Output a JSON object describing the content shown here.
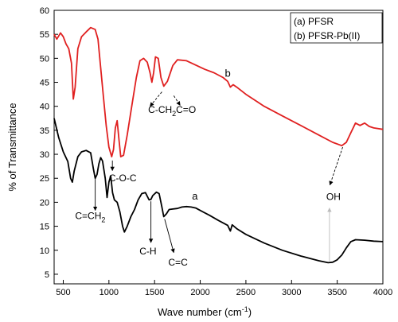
{
  "chart_data": {
    "type": "line",
    "title": "",
    "xlabel": "Wave number (cm",
    "xlabel_sup": "-1",
    "xlabel_close": ")",
    "ylabel": "% of Transmittance",
    "xlim": [
      400,
      4000
    ],
    "ylim": [
      3,
      60
    ],
    "x_ticks": [
      500,
      1000,
      1500,
      2000,
      2500,
      3000,
      3500,
      4000
    ],
    "y_ticks": [
      5,
      10,
      15,
      20,
      25,
      30,
      35,
      40,
      45,
      50,
      55,
      60
    ],
    "grid": false,
    "legend": {
      "placement": "top-right",
      "entries": [
        "(a) PFSR",
        "(b) PFSR-Pb(II)"
      ]
    },
    "series": [
      {
        "name": "(b) PFSR-Pb(II)",
        "curve_label": "b",
        "color": "#e02020",
        "points": [
          [
            400,
            55.0
          ],
          [
            430,
            54.0
          ],
          [
            470,
            55.3
          ],
          [
            500,
            54.5
          ],
          [
            530,
            53.0
          ],
          [
            560,
            52.0
          ],
          [
            590,
            49.0
          ],
          [
            610,
            41.5
          ],
          [
            630,
            44.0
          ],
          [
            660,
            52.0
          ],
          [
            700,
            54.5
          ],
          [
            750,
            55.5
          ],
          [
            800,
            56.4
          ],
          [
            850,
            56.0
          ],
          [
            880,
            54.0
          ],
          [
            910,
            48.0
          ],
          [
            940,
            42.0
          ],
          [
            970,
            36.0
          ],
          [
            1000,
            31.5
          ],
          [
            1030,
            29.5
          ],
          [
            1050,
            31.0
          ],
          [
            1070,
            35.5
          ],
          [
            1090,
            37.0
          ],
          [
            1110,
            33.0
          ],
          [
            1130,
            29.5
          ],
          [
            1160,
            29.8
          ],
          [
            1200,
            34.0
          ],
          [
            1250,
            40.0
          ],
          [
            1300,
            46.0
          ],
          [
            1340,
            49.5
          ],
          [
            1380,
            50.0
          ],
          [
            1420,
            49.2
          ],
          [
            1450,
            47.0
          ],
          [
            1470,
            45.0
          ],
          [
            1490,
            47.0
          ],
          [
            1510,
            50.3
          ],
          [
            1540,
            50.0
          ],
          [
            1570,
            46.0
          ],
          [
            1600,
            44.2
          ],
          [
            1640,
            45.2
          ],
          [
            1700,
            48.5
          ],
          [
            1750,
            49.7
          ],
          [
            1850,
            49.5
          ],
          [
            1950,
            48.6
          ],
          [
            2050,
            47.7
          ],
          [
            2150,
            47.0
          ],
          [
            2250,
            46.0
          ],
          [
            2300,
            45.2
          ],
          [
            2330,
            44.0
          ],
          [
            2360,
            44.5
          ],
          [
            2400,
            44.0
          ],
          [
            2500,
            42.5
          ],
          [
            2700,
            40.0
          ],
          [
            2900,
            38.0
          ],
          [
            3100,
            36.0
          ],
          [
            3300,
            34.0
          ],
          [
            3450,
            32.5
          ],
          [
            3550,
            31.8
          ],
          [
            3600,
            32.5
          ],
          [
            3650,
            34.5
          ],
          [
            3700,
            36.5
          ],
          [
            3750,
            36.0
          ],
          [
            3800,
            36.5
          ],
          [
            3850,
            35.8
          ],
          [
            3900,
            35.5
          ],
          [
            4000,
            35.2
          ]
        ]
      },
      {
        "name": "(a) PFSR",
        "curve_label": "a",
        "color": "#000000",
        "points": [
          [
            400,
            37.5
          ],
          [
            450,
            33.5
          ],
          [
            500,
            30.5
          ],
          [
            550,
            28.5
          ],
          [
            580,
            25.0
          ],
          [
            600,
            24.2
          ],
          [
            620,
            26.5
          ],
          [
            660,
            29.5
          ],
          [
            700,
            30.5
          ],
          [
            750,
            30.8
          ],
          [
            800,
            30.3
          ],
          [
            830,
            27.0
          ],
          [
            850,
            25.0
          ],
          [
            870,
            25.8
          ],
          [
            890,
            28.0
          ],
          [
            910,
            29.3
          ],
          [
            930,
            28.6
          ],
          [
            960,
            25.0
          ],
          [
            980,
            21.0
          ],
          [
            1000,
            24.2
          ],
          [
            1020,
            25.5
          ],
          [
            1040,
            22.0
          ],
          [
            1060,
            20.5
          ],
          [
            1090,
            20.0
          ],
          [
            1120,
            18.0
          ],
          [
            1150,
            15.0
          ],
          [
            1170,
            13.8
          ],
          [
            1200,
            15.0
          ],
          [
            1240,
            17.0
          ],
          [
            1280,
            18.5
          ],
          [
            1320,
            20.5
          ],
          [
            1360,
            21.8
          ],
          [
            1400,
            22.0
          ],
          [
            1440,
            20.5
          ],
          [
            1460,
            20.6
          ],
          [
            1480,
            21.4
          ],
          [
            1520,
            22.1
          ],
          [
            1550,
            21.8
          ],
          [
            1580,
            19.0
          ],
          [
            1600,
            17.0
          ],
          [
            1630,
            17.6
          ],
          [
            1660,
            18.5
          ],
          [
            1700,
            18.6
          ],
          [
            1750,
            18.7
          ],
          [
            1800,
            19.0
          ],
          [
            1850,
            19.1
          ],
          [
            1900,
            19.0
          ],
          [
            1950,
            18.8
          ],
          [
            2000,
            18.3
          ],
          [
            2100,
            17.3
          ],
          [
            2200,
            16.2
          ],
          [
            2300,
            15.2
          ],
          [
            2330,
            14.0
          ],
          [
            2350,
            15.3
          ],
          [
            2400,
            14.5
          ],
          [
            2500,
            13.3
          ],
          [
            2700,
            11.5
          ],
          [
            2900,
            10.0
          ],
          [
            3100,
            8.8
          ],
          [
            3300,
            7.8
          ],
          [
            3400,
            7.4
          ],
          [
            3450,
            7.5
          ],
          [
            3500,
            8.0
          ],
          [
            3550,
            9.0
          ],
          [
            3600,
            10.5
          ],
          [
            3650,
            11.8
          ],
          [
            3700,
            12.2
          ],
          [
            3800,
            12.1
          ],
          [
            3900,
            11.9
          ],
          [
            4000,
            11.8
          ]
        ]
      }
    ],
    "annotations": [
      {
        "text": "C-CH",
        "sub": "2",
        "x": 1430,
        "y": 38.6,
        "arrow_from": [
          1580,
          43.0
        ],
        "arrow_to": [
          1450,
          40.0
        ]
      },
      {
        "text": "C=O",
        "x": 1735,
        "y": 38.6,
        "arrow_from": [
          1710,
          42.2
        ],
        "arrow_to": [
          1780,
          40.2
        ]
      },
      {
        "text": "C-O-C",
        "x": 1000,
        "y": 24.4,
        "arrow_from": [
          1038,
          28.7
        ],
        "arrow_to": [
          1038,
          26.6
        ]
      },
      {
        "text": "C=CH",
        "sub": "2",
        "x": 630,
        "y": 16.5,
        "arrow_from": [
          850,
          25.0
        ],
        "arrow_to": [
          850,
          18.3
        ]
      },
      {
        "text": "C-H",
        "x": 1335,
        "y": 9.1,
        "arrow_from": [
          1460,
          20.2
        ],
        "arrow_to": [
          1460,
          11.6
        ]
      },
      {
        "text": "C=C",
        "x": 1650,
        "y": 6.8,
        "arrow_from": [
          1610,
          16.5
        ],
        "arrow_to": [
          1710,
          9.5
        ]
      },
      {
        "text": "OH",
        "x": 3380,
        "y": 20.5,
        "arrow_from": [
          3415,
          7.8
        ],
        "arrow_to": [
          3415,
          18.8
        ],
        "light": true
      },
      {
        "text": "",
        "x": 3400,
        "y": 24.5,
        "arrow_from": [
          3560,
          31.5
        ],
        "arrow_to": [
          3420,
          23.6
        ]
      }
    ]
  }
}
